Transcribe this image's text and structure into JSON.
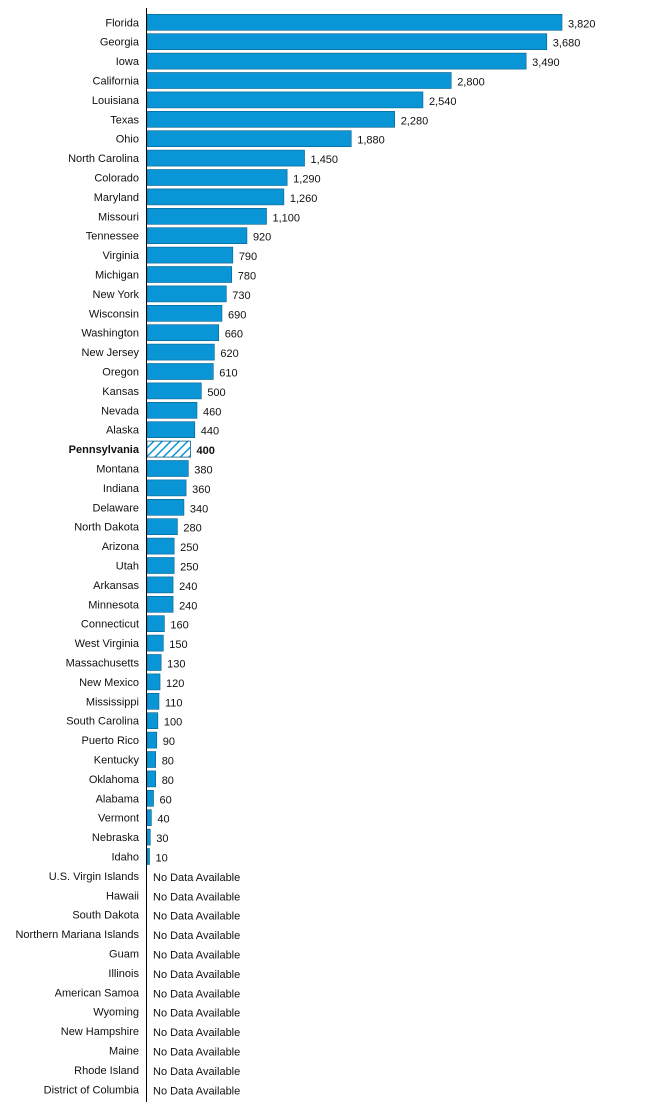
{
  "chart_data": {
    "type": "bar",
    "orientation": "horizontal",
    "highlight": "Pennsylvania",
    "no_data_text": "No Data Available",
    "colors": {
      "bar": "#0a96d6",
      "highlight_hatch": "#0a96d6"
    },
    "grid": false,
    "xlim": [
      0,
      3820
    ],
    "categories": [
      "Florida",
      "Georgia",
      "Iowa",
      "California",
      "Louisiana",
      "Texas",
      "Ohio",
      "North Carolina",
      "Colorado",
      "Maryland",
      "Missouri",
      "Tennessee",
      "Virginia",
      "Michigan",
      "New York",
      "Wisconsin",
      "Washington",
      "New Jersey",
      "Oregon",
      "Kansas",
      "Nevada",
      "Alaska",
      "Pennsylvania",
      "Montana",
      "Indiana",
      "Delaware",
      "North Dakota",
      "Arizona",
      "Utah",
      "Arkansas",
      "Minnesota",
      "Connecticut",
      "West Virginia",
      "Massachusetts",
      "New Mexico",
      "Mississippi",
      "South Carolina",
      "Puerto Rico",
      "Kentucky",
      "Oklahoma",
      "Alabama",
      "Vermont",
      "Nebraska",
      "Idaho",
      "U.S. Virgin Islands",
      "Hawaii",
      "South Dakota",
      "Northern Mariana Islands",
      "Guam",
      "Illinois",
      "American Samoa",
      "Wyoming",
      "New Hampshire",
      "Maine",
      "Rhode Island",
      "District of Columbia"
    ],
    "values": [
      3820,
      3680,
      3490,
      2800,
      2540,
      2280,
      1880,
      1450,
      1290,
      1260,
      1100,
      920,
      790,
      780,
      730,
      690,
      660,
      620,
      610,
      500,
      460,
      440,
      400,
      380,
      360,
      340,
      280,
      250,
      250,
      240,
      240,
      160,
      150,
      130,
      120,
      110,
      100,
      90,
      80,
      80,
      60,
      40,
      30,
      10,
      null,
      null,
      null,
      null,
      null,
      null,
      null,
      null,
      null,
      null,
      null,
      null
    ],
    "value_labels": [
      "3,820",
      "3,680",
      "3,490",
      "2,800",
      "2,540",
      "2,280",
      "1,880",
      "1,450",
      "1,290",
      "1,260",
      "1,100",
      "920",
      "790",
      "780",
      "730",
      "690",
      "660",
      "620",
      "610",
      "500",
      "460",
      "440",
      "400",
      "380",
      "360",
      "340",
      "280",
      "250",
      "250",
      "240",
      "240",
      "160",
      "150",
      "130",
      "120",
      "110",
      "100",
      "90",
      "80",
      "80",
      "60",
      "40",
      "30",
      "10",
      "No Data Available",
      "No Data Available",
      "No Data Available",
      "No Data Available",
      "No Data Available",
      "No Data Available",
      "No Data Available",
      "No Data Available",
      "No Data Available",
      "No Data Available",
      "No Data Available",
      "No Data Available"
    ]
  }
}
